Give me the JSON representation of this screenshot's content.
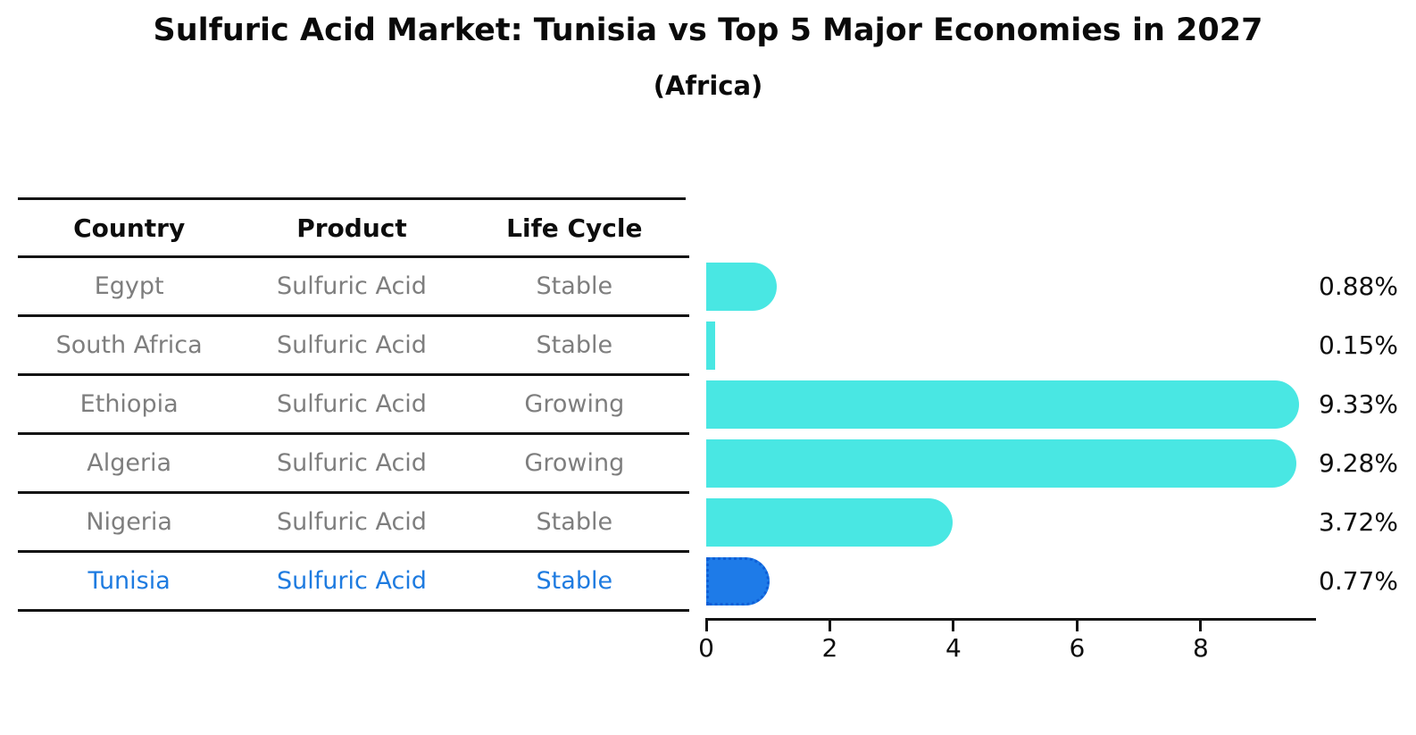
{
  "title": "Sulfuric Acid Market: Tunisia vs Top 5 Major Economies in 2027",
  "subtitle": "(Africa)",
  "table": {
    "headers": [
      "Country",
      "Product",
      "Life Cycle"
    ],
    "rows": [
      {
        "country": "Egypt",
        "product": "Sulfuric Acid",
        "life_cycle": "Stable",
        "highlight": false
      },
      {
        "country": "South Africa",
        "product": "Sulfuric Acid",
        "life_cycle": "Stable",
        "highlight": false
      },
      {
        "country": "Ethiopia",
        "product": "Sulfuric Acid",
        "life_cycle": "Growing",
        "highlight": false
      },
      {
        "country": "Algeria",
        "product": "Sulfuric Acid",
        "life_cycle": "Growing",
        "highlight": false
      },
      {
        "country": "Nigeria",
        "product": "Sulfuric Acid",
        "life_cycle": "Stable",
        "highlight": false
      },
      {
        "country": "Tunisia",
        "product": "Sulfuric Acid",
        "life_cycle": "Stable",
        "highlight": true
      }
    ]
  },
  "chart_data": {
    "type": "bar",
    "orientation": "horizontal",
    "title": "Sulfuric Acid Market: Tunisia vs Top 5 Major Economies in 2027",
    "subtitle": "(Africa)",
    "categories": [
      "Egypt",
      "South Africa",
      "Ethiopia",
      "Algeria",
      "Nigeria",
      "Tunisia"
    ],
    "values": [
      0.88,
      0.15,
      9.33,
      9.28,
      3.72,
      0.77
    ],
    "value_labels": [
      "0.88%",
      "0.15%",
      "9.33%",
      "9.28%",
      "3.72%",
      "0.77%"
    ],
    "highlight_category": "Tunisia",
    "x_ticks": [
      "0",
      "2",
      "4",
      "6",
      "8"
    ],
    "xlim": [
      0,
      9.85
    ],
    "grid": false,
    "legend_position": "none",
    "colors": {
      "bar_default": "#49e7e3",
      "bar_highlight": "#1e7be8",
      "bar_highlight_border": "#0f5fd7",
      "table_text": "#7e7e7e",
      "highlight_text": "#1e7be0",
      "axis_and_headers": "#141414"
    }
  }
}
